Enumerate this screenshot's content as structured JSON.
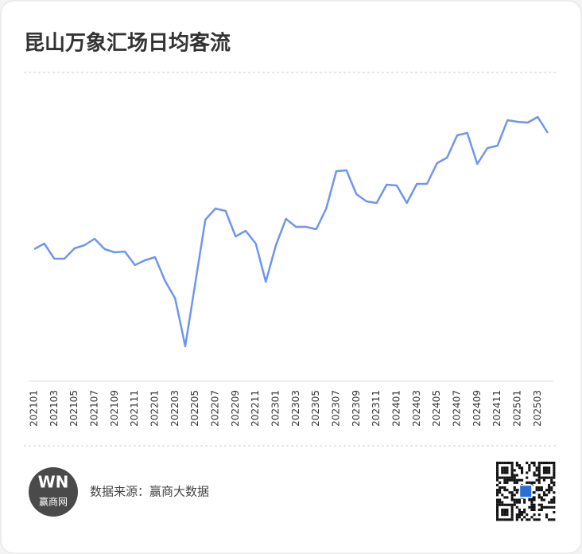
{
  "chart_data": {
    "type": "line",
    "title": "昆山万象汇场日均客流",
    "categories": [
      "202101",
      null,
      "202103",
      null,
      "202105",
      null,
      "202107",
      null,
      "202109",
      null,
      "202111",
      null,
      "202201",
      null,
      "202203",
      null,
      "202205",
      null,
      "202207",
      null,
      "202209",
      null,
      "202211",
      null,
      "202301",
      null,
      "202303",
      null,
      "202305",
      null,
      "202307",
      null,
      "202309",
      null,
      "202311",
      null,
      "202401",
      null,
      "202403",
      null,
      "202405",
      null,
      "202407",
      null,
      "202409",
      null,
      "202411",
      null,
      "202501",
      null,
      "202503",
      null
    ],
    "values": [
      167,
      174,
      155,
      155,
      168,
      172,
      180,
      167,
      163,
      164,
      147,
      153,
      157,
      127,
      105,
      45,
      125,
      204,
      218,
      215,
      183,
      190,
      174,
      126,
      172,
      205,
      195,
      195,
      192,
      218,
      265,
      266,
      236,
      227,
      225,
      248,
      247,
      225,
      249,
      249,
      275,
      282,
      310,
      313,
      274,
      294,
      297,
      329,
      327,
      326,
      333,
      313
    ],
    "color": "#6f95ee",
    "ylim": [
      0,
      390
    ]
  },
  "footer": {
    "logo_mark": "WN",
    "logo_text": "赢商网",
    "source": "数据来源：赢商大数据"
  }
}
